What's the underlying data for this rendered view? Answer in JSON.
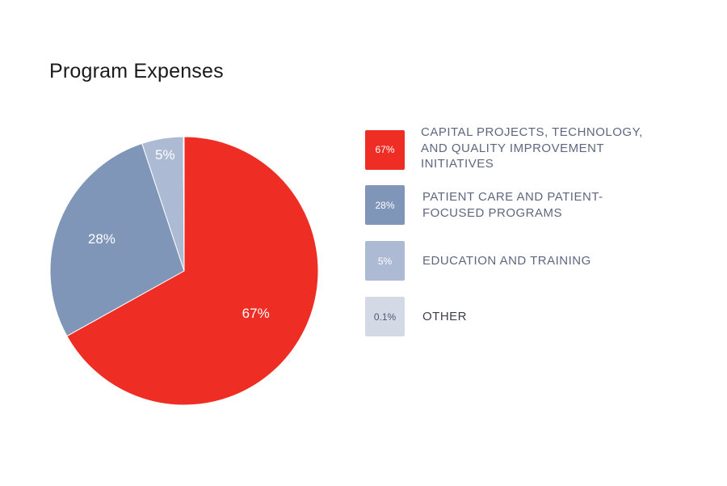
{
  "chart_data": {
    "type": "pie",
    "title": "Program Expenses",
    "slices": [
      {
        "label": "CAPITAL PROJECTS, TECHNOLOGY, AND QUALITY IMPROVEMENT INITIATIVES",
        "value": 67,
        "display": "67%",
        "color": "#ee2e24"
      },
      {
        "label": "PATIENT CARE AND PATIENT-FOCUSED PROGRAMS",
        "value": 28,
        "display": "28%",
        "color": "#8096b8"
      },
      {
        "label": "EDUCATION AND TRAINING",
        "value": 5,
        "display": "5%",
        "color": "#adbad3"
      },
      {
        "label": "OTHER",
        "value": 0.1,
        "display": "0.1%",
        "color": "#d4d9e6"
      }
    ],
    "legend_position": "right"
  }
}
